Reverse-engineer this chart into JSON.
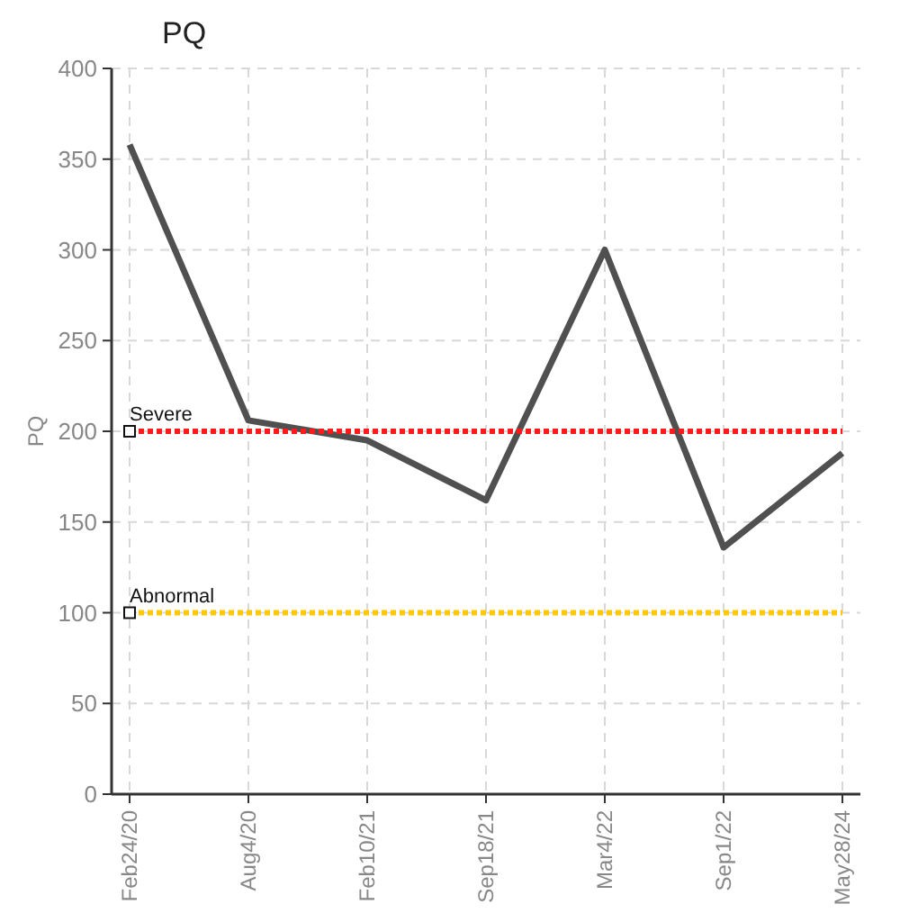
{
  "chart_data": {
    "type": "line",
    "title": "PQ",
    "ylabel": "PQ",
    "categories": [
      "Feb24/20",
      "Aug4/20",
      "Feb10/21",
      "Sep18/21",
      "Mar4/22",
      "Sep1/22",
      "May28/24"
    ],
    "series": [
      {
        "color": "#505050",
        "values": [
          358,
          206,
          195,
          162,
          300,
          136,
          188
        ]
      }
    ],
    "ylim": [
      0,
      400
    ],
    "yticks": [
      0,
      50,
      100,
      150,
      200,
      250,
      300,
      350,
      400
    ],
    "grid": true,
    "marker": "none",
    "line_style": "solid",
    "ref_lines": [
      {
        "axis": "y",
        "value": 200,
        "label": "Severe",
        "color": "#ff1a1a",
        "line_style": "dotted"
      },
      {
        "axis": "y",
        "value": 100,
        "label": "Abnormal",
        "color": "#ffc800",
        "line_style": "dotted"
      }
    ]
  }
}
